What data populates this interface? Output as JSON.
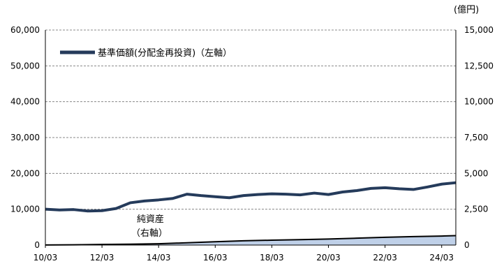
{
  "chart_data": {
    "type": "line",
    "unit_right": "(億円)",
    "left_axis": {
      "ylim": [
        0,
        60000
      ],
      "ticks": [
        "0",
        "10,000",
        "20,000",
        "30,000",
        "40,000",
        "50,000",
        "60,000"
      ]
    },
    "right_axis": {
      "ylim": [
        0,
        15000
      ],
      "ticks": [
        "0",
        "2,500",
        "5,000",
        "7,500",
        "10,000",
        "12,500",
        "15,000"
      ]
    },
    "x_axis": {
      "range": [
        "2010-03",
        "2024-09"
      ],
      "ticks": [
        "10/03",
        "12/03",
        "14/03",
        "16/03",
        "18/03",
        "20/03",
        "22/03",
        "24/03"
      ]
    },
    "grid": true,
    "legend": {
      "position": "top-left",
      "label": "基準価額(分配金再投資)（左軸）"
    },
    "annotation": {
      "line1": "純資産",
      "line2": "（右軸）"
    },
    "series": [
      {
        "name": "基準価額(分配金再投資)（左軸）",
        "axis": "left",
        "kind": "line",
        "color": "#253b5b",
        "x": [
          "2010-03",
          "2010-09",
          "2011-03",
          "2011-09",
          "2012-03",
          "2012-09",
          "2013-03",
          "2013-09",
          "2014-03",
          "2014-09",
          "2015-03",
          "2015-09",
          "2016-03",
          "2016-09",
          "2017-03",
          "2017-09",
          "2018-03",
          "2018-09",
          "2019-03",
          "2019-09",
          "2020-03",
          "2020-09",
          "2021-03",
          "2021-09",
          "2022-03",
          "2022-09",
          "2023-03",
          "2023-09",
          "2024-03",
          "2024-09"
        ],
        "values": [
          10000,
          9800,
          9900,
          9500,
          9600,
          10200,
          11800,
          12300,
          12600,
          13000,
          14200,
          13800,
          13500,
          13200,
          13800,
          14100,
          14300,
          14200,
          14000,
          14500,
          14100,
          14800,
          15200,
          15800,
          16000,
          15700,
          15500,
          16200,
          17000,
          17400
        ]
      },
      {
        "name": "純資産（右軸）",
        "axis": "right",
        "kind": "area",
        "color": "#bfd0e8",
        "line_color": "#000000",
        "x": [
          "2010-03",
          "2011-03",
          "2012-03",
          "2013-03",
          "2014-03",
          "2015-03",
          "2016-03",
          "2017-03",
          "2018-03",
          "2019-03",
          "2020-03",
          "2021-03",
          "2022-03",
          "2023-03",
          "2024-03",
          "2024-09"
        ],
        "values": [
          5,
          20,
          40,
          60,
          90,
          160,
          230,
          300,
          340,
          380,
          420,
          480,
          540,
          590,
          630,
          660
        ]
      }
    ]
  }
}
